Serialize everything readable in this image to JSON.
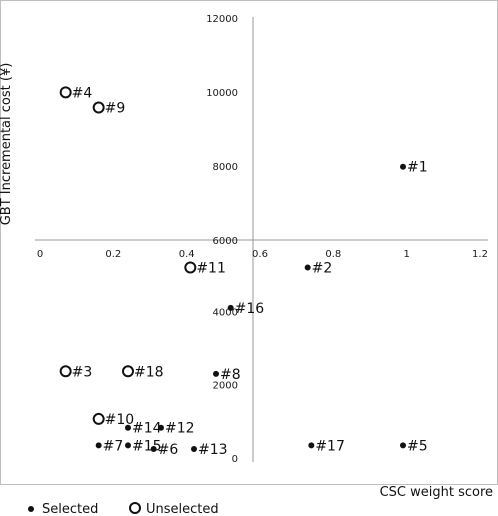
{
  "chart_data": {
    "type": "scatter",
    "title": "",
    "xlabel": "CSC weight score",
    "ylabel": "GBT Incremental cost (¥)",
    "xlim": [
      0,
      1.2
    ],
    "ylim": [
      0,
      12000
    ],
    "x_ticks": [
      "0",
      "0.2",
      "0.4",
      "0.6",
      "0.8",
      "1",
      "1.2"
    ],
    "y_ticks_upper": [
      "6000",
      "8000",
      "10000",
      "12000"
    ],
    "y_ticks_lower": [
      "0",
      "2000",
      "4000"
    ],
    "grid": false,
    "legend_position": "bottom-left",
    "series": [
      {
        "name": "Selected",
        "marker": "filled-circle",
        "color": "#111111",
        "points": [
          {
            "label": "#1",
            "x": 0.99,
            "y": 7980
          },
          {
            "label": "#2",
            "x": 0.73,
            "y": 5250
          },
          {
            "label": "#16",
            "x": 0.52,
            "y": 4150
          },
          {
            "label": "#8",
            "x": 0.48,
            "y": 2350
          },
          {
            "label": "#14",
            "x": 0.24,
            "y": 880
          },
          {
            "label": "#12",
            "x": 0.33,
            "y": 880
          },
          {
            "label": "#7",
            "x": 0.16,
            "y": 400
          },
          {
            "label": "#15",
            "x": 0.24,
            "y": 400
          },
          {
            "label": "#6",
            "x": 0.31,
            "y": 300
          },
          {
            "label": "#13",
            "x": 0.42,
            "y": 300
          },
          {
            "label": "#17",
            "x": 0.74,
            "y": 400
          },
          {
            "label": "#5",
            "x": 0.99,
            "y": 400
          }
        ]
      },
      {
        "name": "Unselected",
        "marker": "open-circle",
        "color": "#111111",
        "points": [
          {
            "label": "#4",
            "x": 0.07,
            "y": 9990
          },
          {
            "label": "#9",
            "x": 0.16,
            "y": 9580
          },
          {
            "label": "#11",
            "x": 0.41,
            "y": 5250
          },
          {
            "label": "#3",
            "x": 0.07,
            "y": 2420
          },
          {
            "label": "#18",
            "x": 0.24,
            "y": 2420
          },
          {
            "label": "#10",
            "x": 0.16,
            "y": 1120
          }
        ]
      }
    ]
  }
}
